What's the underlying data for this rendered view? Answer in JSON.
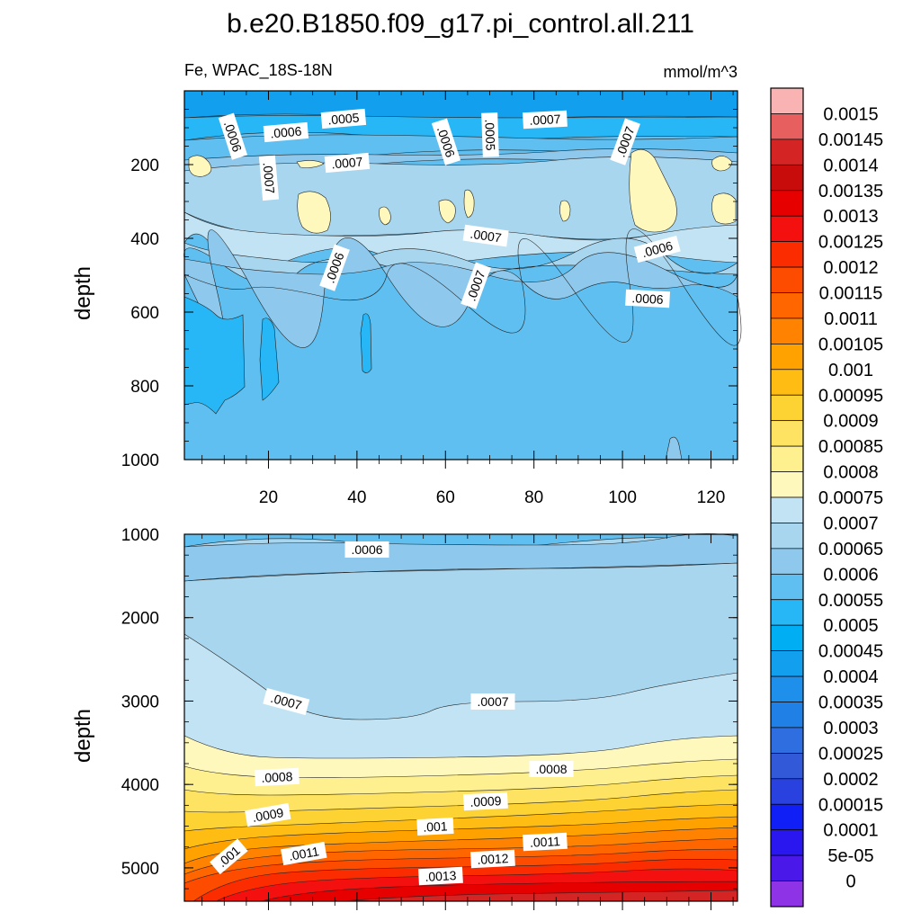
{
  "title": "b.e20.B1850.f09_g17.pi_control.all.211",
  "chart_data": {
    "type": "contour",
    "variable_label": "Fe, WPAC_18S-18N",
    "units": "mmol/m^3",
    "panels": [
      {
        "id": "upper",
        "ylabel": "depth",
        "y_range": [
          0,
          1000
        ],
        "x_range": [
          1,
          126
        ],
        "x_ticks": [
          "20",
          "40",
          "60",
          "80",
          "100",
          "120"
        ],
        "y_ticks": [
          "200",
          "400",
          "600",
          "800",
          "1000"
        ],
        "contour_labels": [
          ".0006",
          ".0006",
          ".0005",
          ".0007",
          ".0007",
          ".0006",
          ".0005",
          ".0007",
          ".0007",
          ".0007",
          ".0006",
          ".0006",
          ".0007",
          ".0006"
        ]
      },
      {
        "id": "lower",
        "ylabel": "depth",
        "y_range": [
          1000,
          5400
        ],
        "x_range": [
          1,
          126
        ],
        "y_ticks": [
          "1000",
          "2000",
          "3000",
          "4000",
          "5000"
        ],
        "contour_labels": [
          ".0006",
          ".0007",
          ".0007",
          ".0008",
          ".0008",
          ".0009",
          ".0009",
          ".001",
          ".001",
          ".0011",
          ".0011",
          ".0012",
          ".0013"
        ]
      }
    ],
    "colorbar": {
      "labels": [
        "0.0015",
        "0.00145",
        "0.0014",
        "0.00135",
        "0.0013",
        "0.00125",
        "0.0012",
        "0.00115",
        "0.0011",
        "0.00105",
        "0.001",
        "0.00095",
        "0.0009",
        "0.00085",
        "0.0008",
        "0.00075",
        "0.0007",
        "0.00065",
        "0.0006",
        "0.00055",
        "0.0005",
        "0.00045",
        "0.0004",
        "0.00035",
        "0.0003",
        "0.00025",
        "0.0002",
        "0.00015",
        "0.0001",
        "5e-05",
        "0"
      ],
      "colors": [
        "#f9b3b3",
        "#e85f5f",
        "#d42424",
        "#c80c0c",
        "#e60000",
        "#f51010",
        "#fb2c00",
        "#fd4b00",
        "#ff6600",
        "#ff8300",
        "#ffa200",
        "#ffbc13",
        "#fdd233",
        "#fee262",
        "#fff08f",
        "#fff8bd",
        "#c2e3f3",
        "#a8d6ef",
        "#8ec8ec",
        "#5fbff0",
        "#28b7f6",
        "#00aff3",
        "#12a0ee",
        "#1f8fec",
        "#2080e6",
        "#2e6ee1",
        "#3159d8",
        "#2841df",
        "#101ff5",
        "#2a17f0",
        "#4a18e8",
        "#8e33e6"
      ]
    }
  }
}
